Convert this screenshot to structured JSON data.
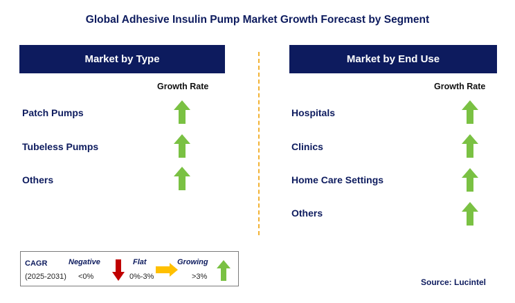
{
  "title": "Global Adhesive Insulin Pump Market Growth Forecast by Segment",
  "colors": {
    "navy": "#0d1b5e",
    "up_arrow": "#7ac143",
    "down_arrow": "#c00000",
    "flat_arrow": "#ffc000",
    "divider": "#f2b233"
  },
  "left_panel": {
    "header": "Market by Type",
    "growth_label": "Growth Rate",
    "rows": [
      {
        "label": "Patch Pumps",
        "trend": "up-arrow-icon"
      },
      {
        "label": "Tubeless Pumps",
        "trend": "up-arrow-icon"
      },
      {
        "label": "Others",
        "trend": "up-arrow-icon"
      }
    ]
  },
  "right_panel": {
    "header": "Market by End Use",
    "growth_label": "Growth Rate",
    "rows": [
      {
        "label": "Hospitals",
        "trend": "up-arrow-icon"
      },
      {
        "label": "Clinics",
        "trend": "up-arrow-icon"
      },
      {
        "label": "Home Care Settings",
        "trend": "up-arrow-icon"
      },
      {
        "label": "Others",
        "trend": "up-arrow-icon"
      }
    ]
  },
  "legend": {
    "cagr": "CAGR",
    "period": "(2025-2031)",
    "negative_label": "Negative",
    "negative_range": "<0%",
    "flat_label": "Flat",
    "flat_range": "0%-3%",
    "growing_label": "Growing",
    "growing_range": ">3%"
  },
  "source": "Source: Lucintel"
}
